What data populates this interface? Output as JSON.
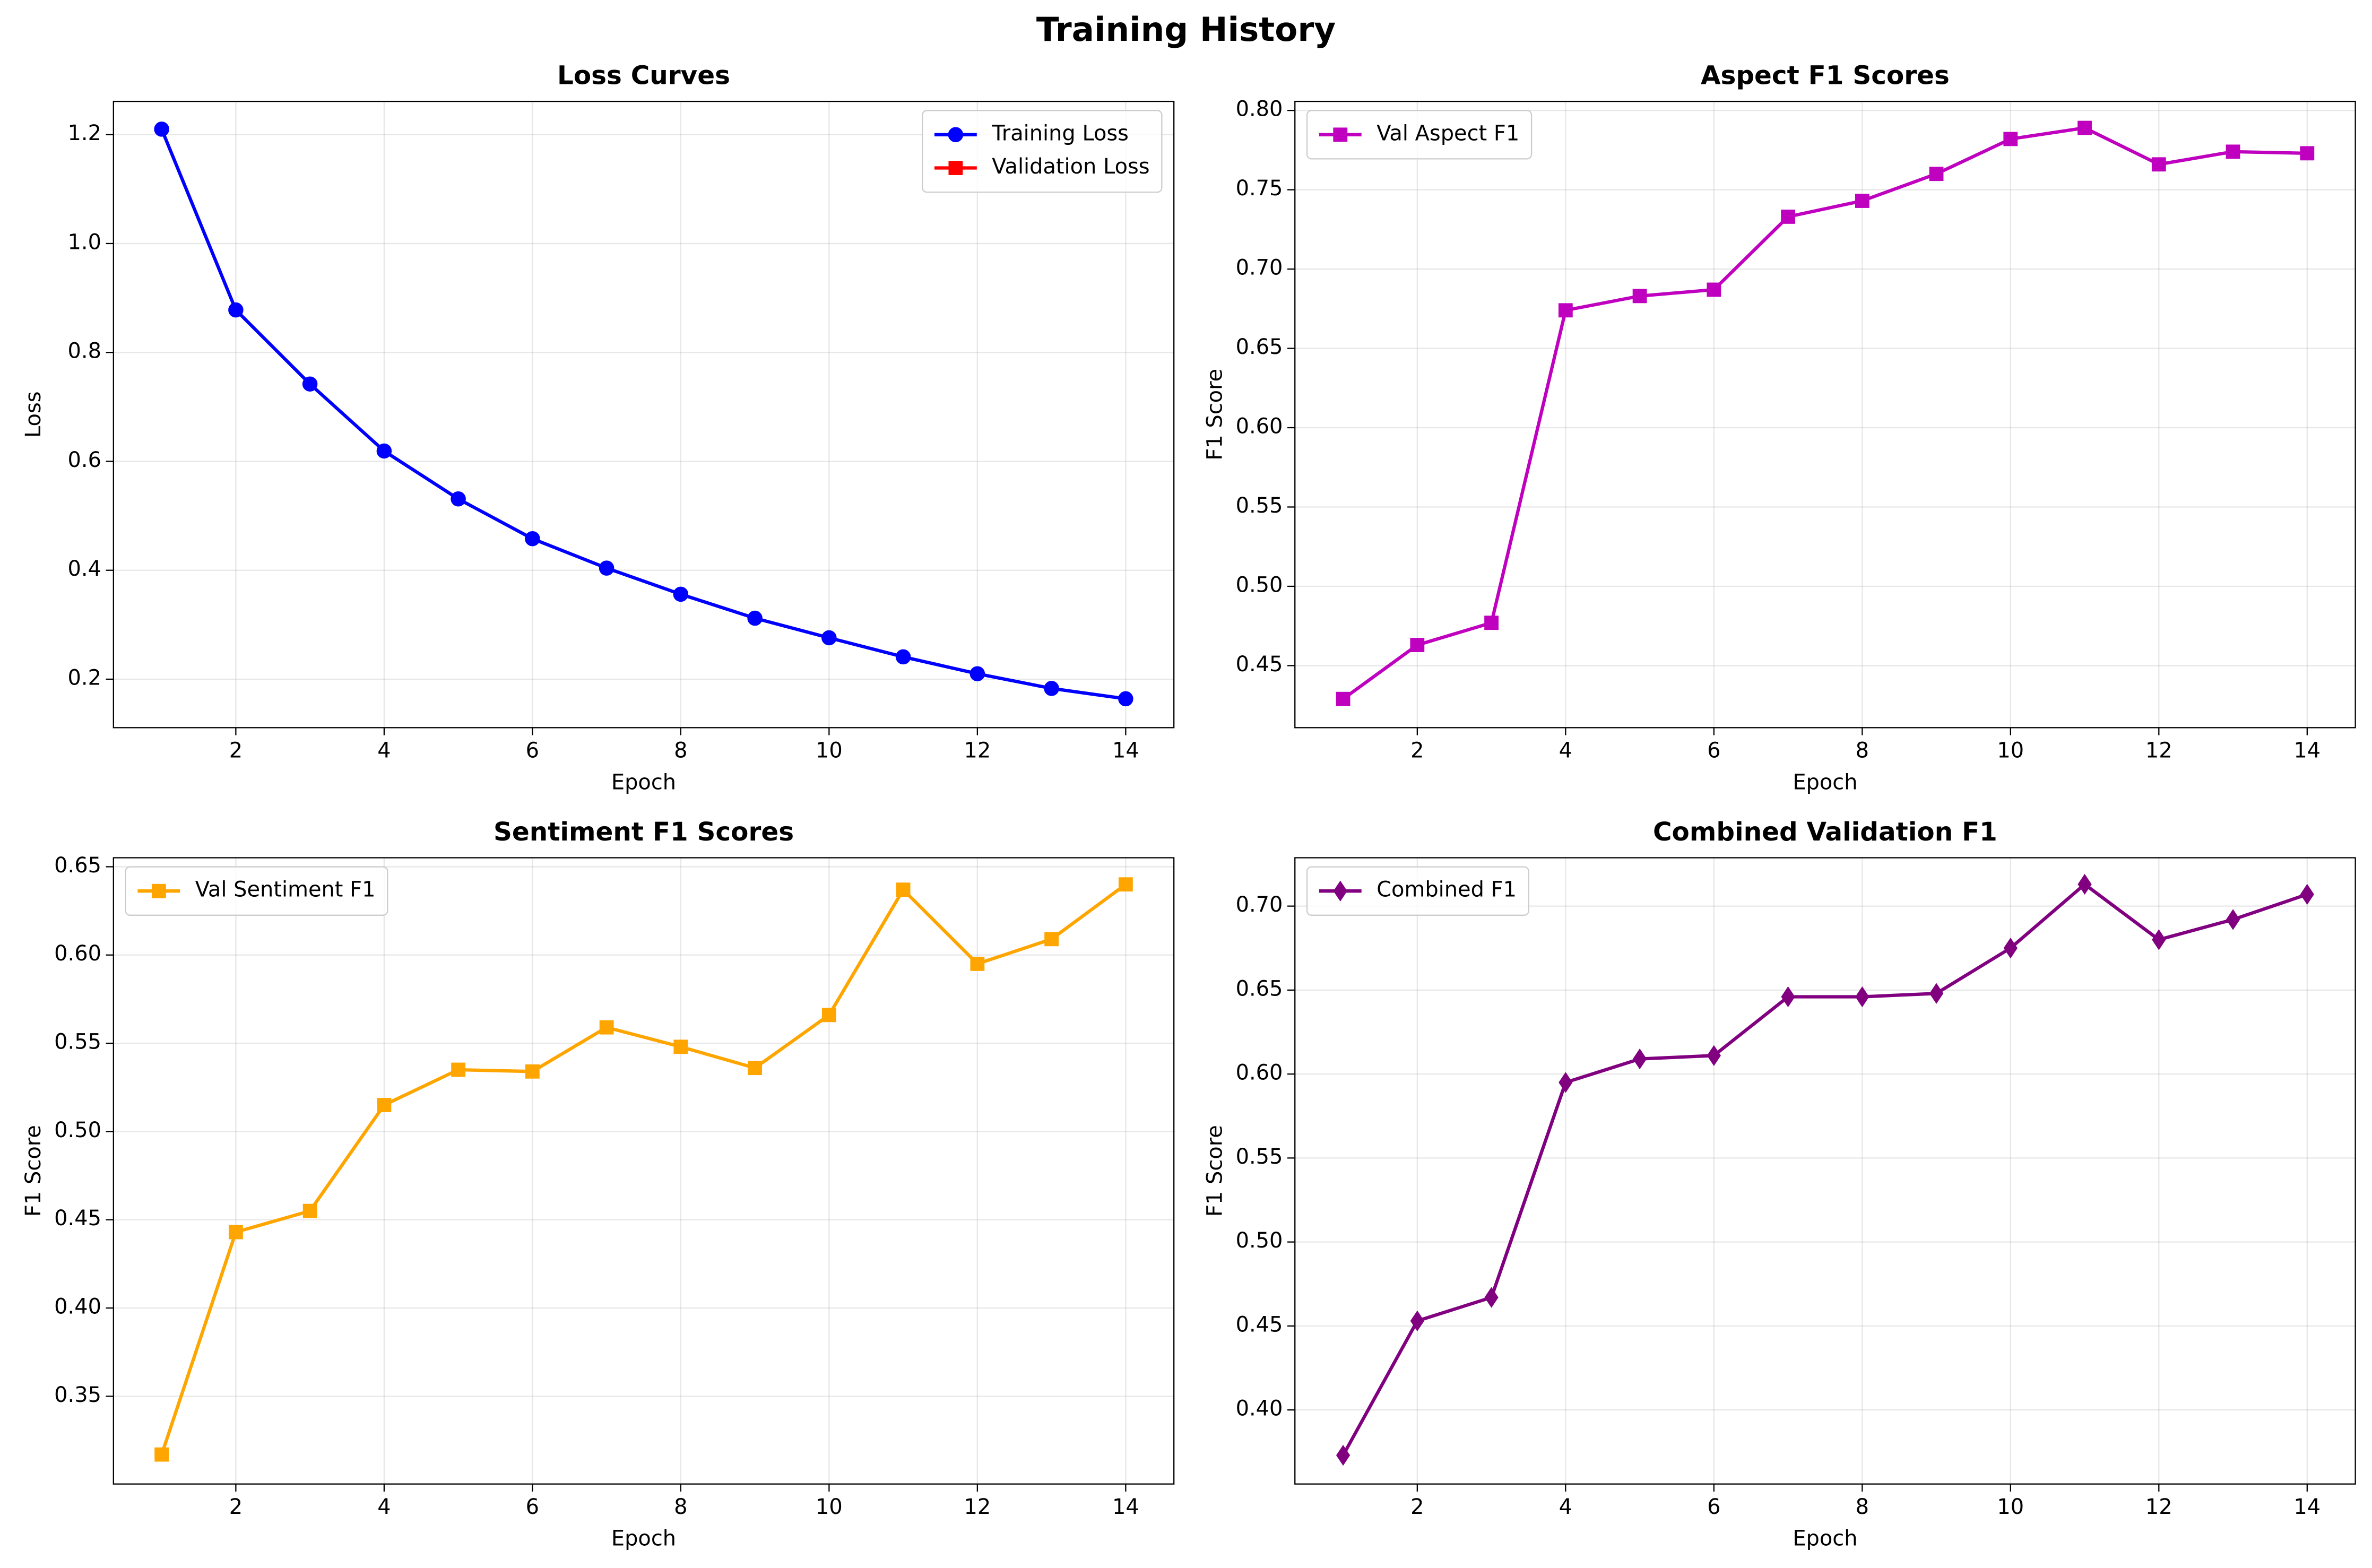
{
  "title": "Training History",
  "chart_data": [
    {
      "type": "line",
      "title": "Loss Curves",
      "xlabel": "Epoch",
      "ylabel": "Loss",
      "x": [
        1,
        2,
        3,
        4,
        5,
        6,
        7,
        8,
        9,
        10,
        11,
        12,
        13,
        14
      ],
      "series": [
        {
          "name": "Training Loss",
          "color": "#0000ff",
          "marker": "circle",
          "values": [
            1.21,
            0.878,
            0.742,
            0.619,
            0.531,
            0.458,
            0.404,
            0.356,
            0.312,
            0.276,
            0.241,
            0.21,
            0.183,
            0.164
          ]
        },
        {
          "name": "Validation Loss",
          "color": "#ff0000",
          "marker": "square",
          "values": [
            null,
            null,
            null,
            null,
            null,
            null,
            null,
            null,
            null,
            null,
            null,
            null,
            null,
            null
          ]
        }
      ],
      "xlim": [
        0.35,
        14.65
      ],
      "xticks": [
        2,
        4,
        6,
        8,
        10,
        12,
        14
      ],
      "ylim": [
        0.111,
        1.261
      ],
      "yticks": [
        0.2,
        0.4,
        0.6,
        0.8,
        {
          "value": 1,
          "label": "1.0"
        },
        1.2
      ],
      "grid": true,
      "legend": "upper right"
    },
    {
      "type": "line",
      "title": "Aspect F1 Scores",
      "xlabel": "Epoch",
      "ylabel": "F1 Score",
      "x": [
        1,
        2,
        3,
        4,
        5,
        6,
        7,
        8,
        9,
        10,
        11,
        12,
        13,
        14
      ],
      "series": [
        {
          "name": "Val Aspect F1",
          "color": "#bf00bf",
          "marker": "square",
          "values": [
            0.429,
            0.463,
            0.477,
            0.674,
            0.683,
            0.687,
            0.733,
            0.743,
            0.76,
            0.782,
            0.789,
            0.766,
            0.774,
            0.773
          ]
        }
      ],
      "xlim": [
        0.35,
        14.65
      ],
      "xticks": [
        2,
        4,
        6,
        8,
        10,
        12,
        14
      ],
      "ylim": [
        0.4109,
        0.8057
      ],
      "yticks": [
        0.45,
        {
          "value": 0.5,
          "label": "0.50"
        },
        0.55,
        {
          "value": 0.6,
          "label": "0.60"
        },
        0.65,
        {
          "value": 0.7,
          "label": "0.70"
        },
        0.75,
        {
          "value": 0.8,
          "label": "0.80"
        }
      ],
      "grid": true,
      "legend": "upper left"
    },
    {
      "type": "line",
      "title": "Sentiment F1 Scores",
      "xlabel": "Epoch",
      "ylabel": "F1 Score",
      "x": [
        1,
        2,
        3,
        4,
        5,
        6,
        7,
        8,
        9,
        10,
        11,
        12,
        13,
        14
      ],
      "series": [
        {
          "name": "Val Sentiment F1",
          "color": "#ffa500",
          "marker": "square",
          "values": [
            0.317,
            0.443,
            0.455,
            0.515,
            0.535,
            0.534,
            0.559,
            0.548,
            0.536,
            0.566,
            0.637,
            0.595,
            0.609,
            0.64
          ]
        }
      ],
      "xlim": [
        0.35,
        14.65
      ],
      "xticks": [
        2,
        4,
        6,
        8,
        10,
        12,
        14
      ],
      "ylim": [
        0.3003,
        0.6551
      ],
      "yticks": [
        0.35,
        {
          "value": 0.4,
          "label": "0.40"
        },
        0.45,
        {
          "value": 0.5,
          "label": "0.50"
        },
        0.55,
        {
          "value": 0.6,
          "label": "0.60"
        },
        0.65
      ],
      "grid": true,
      "legend": "upper left"
    },
    {
      "type": "line",
      "title": "Combined Validation F1",
      "xlabel": "Epoch",
      "ylabel": "F1 Score",
      "x": [
        1,
        2,
        3,
        4,
        5,
        6,
        7,
        8,
        9,
        10,
        11,
        12,
        13,
        14
      ],
      "series": [
        {
          "name": "Combined F1",
          "color": "#800080",
          "marker": "diamond",
          "values": [
            0.373,
            0.453,
            0.467,
            0.595,
            0.609,
            0.611,
            0.646,
            0.646,
            0.648,
            0.675,
            0.713,
            0.68,
            0.692,
            0.707
          ]
        }
      ],
      "xlim": [
        0.35,
        14.65
      ],
      "xticks": [
        2,
        4,
        6,
        8,
        10,
        12,
        14
      ],
      "ylim": [
        0.3559,
        0.7288
      ],
      "yticks": [
        {
          "value": 0.4,
          "label": "0.40"
        },
        0.45,
        {
          "value": 0.5,
          "label": "0.50"
        },
        0.55,
        {
          "value": 0.6,
          "label": "0.60"
        },
        0.65,
        {
          "value": 0.7,
          "label": "0.70"
        }
      ],
      "grid": true,
      "legend": "upper left"
    }
  ]
}
